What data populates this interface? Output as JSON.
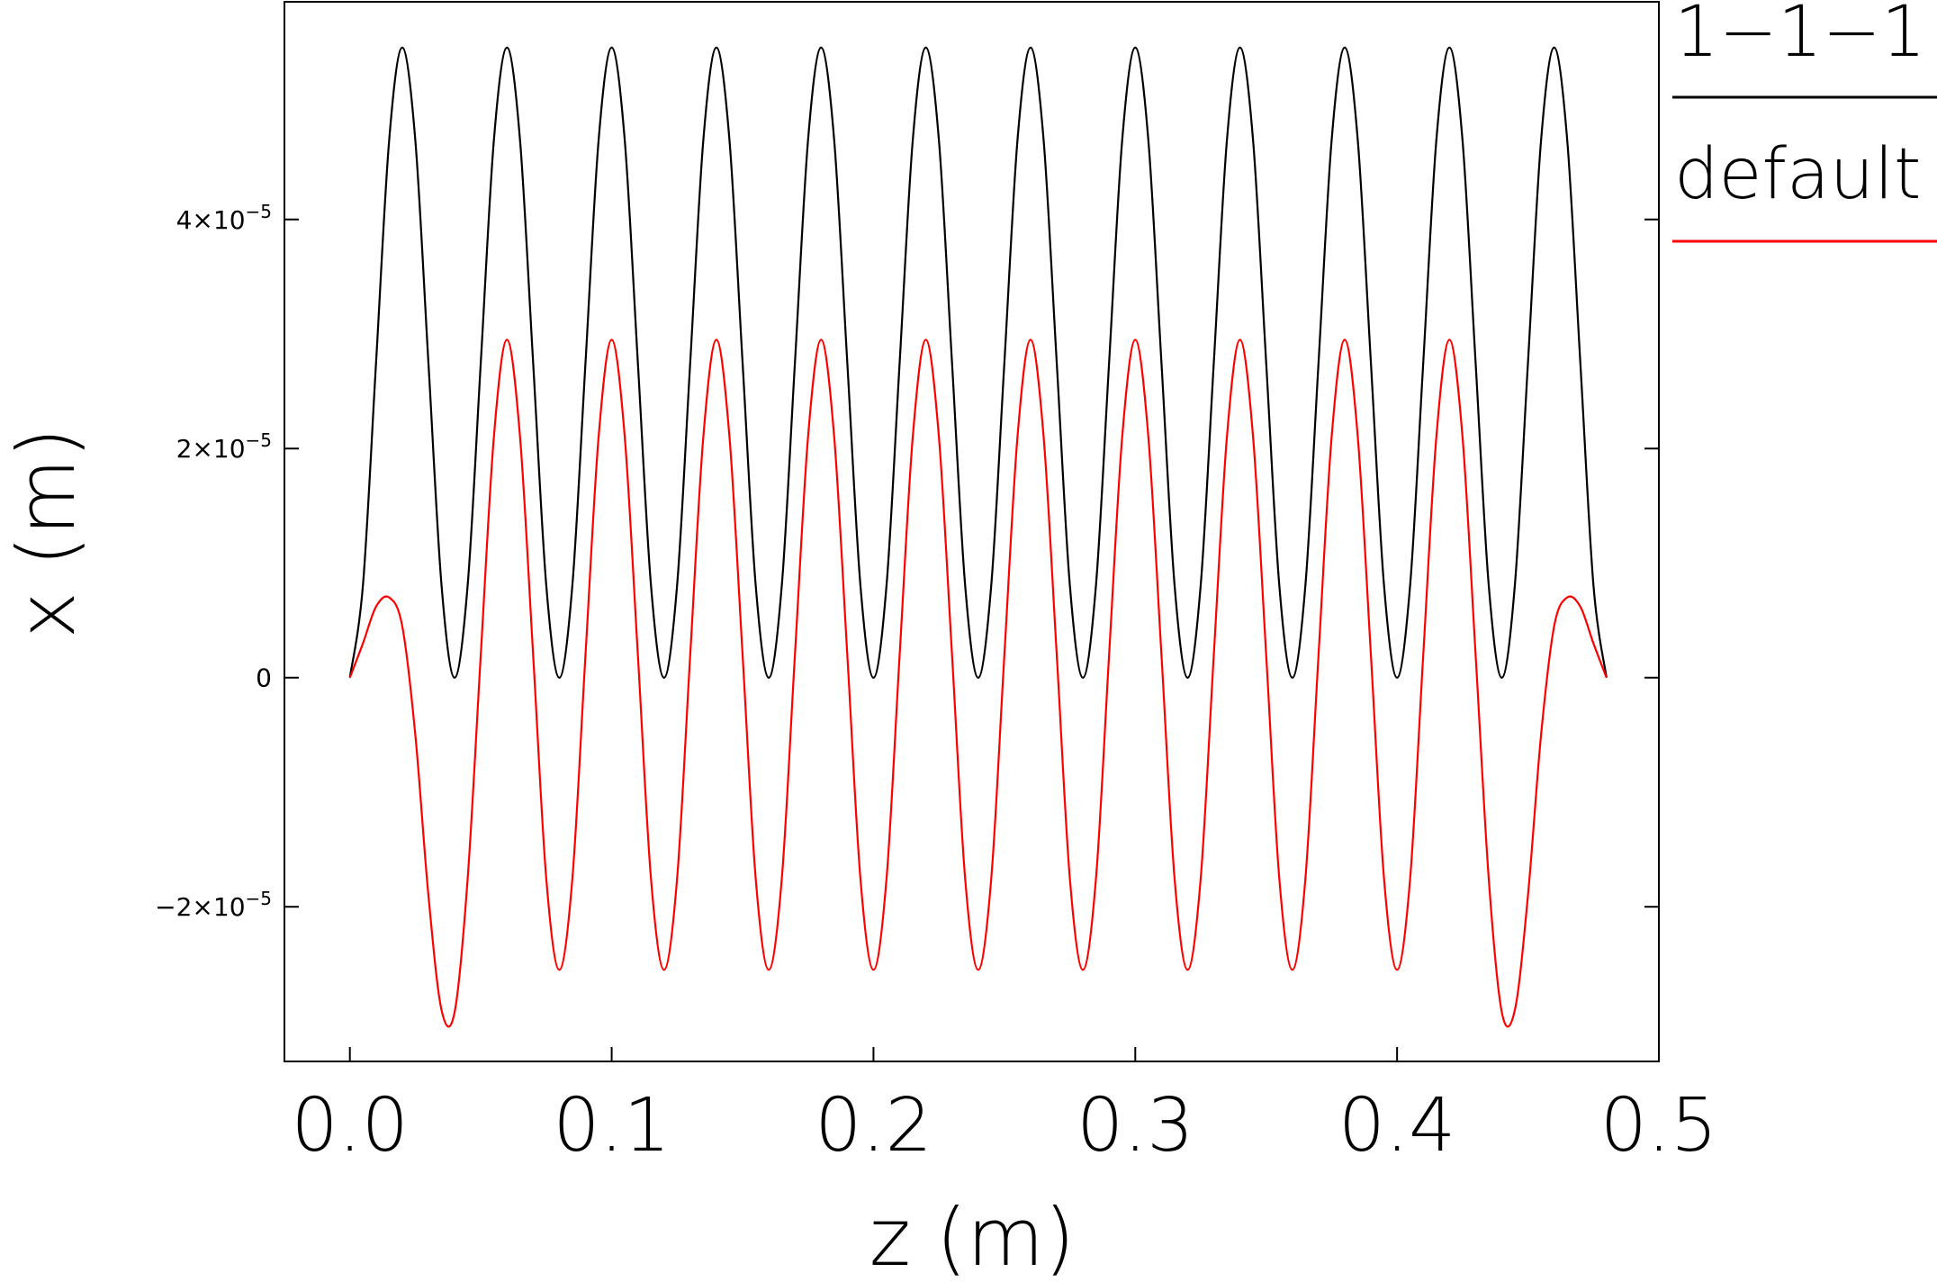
{
  "chart_data": {
    "type": "line",
    "xlabel": "z  (m)",
    "ylabel": "x  (m)",
    "xlim": [
      -0.025,
      0.5
    ],
    "ylim": [
      -3.35e-05,
      5.9e-05
    ],
    "xticks": [
      0.0,
      0.1,
      0.2,
      0.3,
      0.4,
      0.5
    ],
    "xtick_labels": [
      "0.0",
      "0.1",
      "0.2",
      "0.3",
      "0.4",
      "0.5"
    ],
    "yticks": [
      -2e-05,
      0,
      2e-05,
      4e-05
    ],
    "ytick_labels": [
      {
        "mantissa": "−2",
        "exp": "−5"
      },
      {
        "mantissa": "0",
        "exp": ""
      },
      {
        "mantissa": "2",
        "exp": "−5"
      },
      {
        "mantissa": "4",
        "exp": "−5"
      }
    ],
    "grid": false,
    "legend_position": "right-outside",
    "series": [
      {
        "name": "1−1−1",
        "color": "#000000",
        "description": "x oscillation, peaks ~5.5e-5 at z = 0.02 + 0.04k, zeros at z = 0.04k",
        "x": [
          0.0,
          0.005,
          0.01,
          0.015,
          0.02,
          0.025,
          0.03,
          0.035,
          0.04,
          0.045,
          0.05,
          0.055,
          0.06,
          0.065,
          0.07,
          0.075,
          0.08,
          0.085,
          0.09,
          0.095,
          0.1,
          0.105,
          0.11,
          0.115,
          0.12,
          0.125,
          0.13,
          0.135,
          0.14,
          0.145,
          0.15,
          0.155,
          0.16,
          0.165,
          0.17,
          0.175,
          0.18,
          0.185,
          0.19,
          0.195,
          0.2,
          0.205,
          0.21,
          0.215,
          0.22,
          0.225,
          0.23,
          0.235,
          0.24,
          0.245,
          0.25,
          0.255,
          0.26,
          0.265,
          0.27,
          0.275,
          0.28,
          0.285,
          0.29,
          0.295,
          0.3,
          0.305,
          0.31,
          0.315,
          0.32,
          0.325,
          0.33,
          0.335,
          0.34,
          0.345,
          0.35,
          0.355,
          0.36,
          0.365,
          0.37,
          0.375,
          0.38,
          0.385,
          0.39,
          0.395,
          0.4,
          0.405,
          0.41,
          0.415,
          0.42,
          0.425,
          0.43,
          0.435,
          0.44,
          0.445,
          0.45,
          0.455,
          0.46,
          0.465,
          0.47,
          0.475,
          0.48
        ],
        "y": [
          0.0,
          8.1e-06,
          2.75e-05,
          4.69e-05,
          5.5e-05,
          4.69e-05,
          2.75e-05,
          8.1e-06,
          0.0,
          8.1e-06,
          2.75e-05,
          4.69e-05,
          5.5e-05,
          4.69e-05,
          2.75e-05,
          8.1e-06,
          0.0,
          8.1e-06,
          2.75e-05,
          4.69e-05,
          5.5e-05,
          4.69e-05,
          2.75e-05,
          8.1e-06,
          0.0,
          8.1e-06,
          2.75e-05,
          4.69e-05,
          5.5e-05,
          4.69e-05,
          2.75e-05,
          8.1e-06,
          0.0,
          8.1e-06,
          2.75e-05,
          4.69e-05,
          5.5e-05,
          4.69e-05,
          2.75e-05,
          8.1e-06,
          0.0,
          8.1e-06,
          2.75e-05,
          4.69e-05,
          5.5e-05,
          4.69e-05,
          2.75e-05,
          8.1e-06,
          0.0,
          8.1e-06,
          2.75e-05,
          4.69e-05,
          5.5e-05,
          4.69e-05,
          2.75e-05,
          8.1e-06,
          0.0,
          8.1e-06,
          2.75e-05,
          4.69e-05,
          5.5e-05,
          4.69e-05,
          2.75e-05,
          8.1e-06,
          0.0,
          8.1e-06,
          2.75e-05,
          4.69e-05,
          5.5e-05,
          4.69e-05,
          2.75e-05,
          8.1e-06,
          0.0,
          8.1e-06,
          2.75e-05,
          4.69e-05,
          5.5e-05,
          4.69e-05,
          2.75e-05,
          8.1e-06,
          0.0,
          8.1e-06,
          2.75e-05,
          4.69e-05,
          5.5e-05,
          4.69e-05,
          2.75e-05,
          8.1e-06,
          0.0,
          8.1e-06,
          2.75e-05,
          4.69e-05,
          5.5e-05,
          4.69e-05,
          2.75e-05,
          8.1e-06,
          0.0
        ]
      },
      {
        "name": "default",
        "color": "#ff0000",
        "description": "x oscillation around 0; end lobes ~0.7e-5 and minima ~-2.9e-5, interior peaks ~2.95e-5 at z = 0.06 + 0.04k, interior minima ~-2.55e-5",
        "x": [
          0.0,
          0.005,
          0.01,
          0.015,
          0.02,
          0.025,
          0.03,
          0.035,
          0.04,
          0.045,
          0.05,
          0.055,
          0.06,
          0.065,
          0.07,
          0.075,
          0.08,
          0.085,
          0.09,
          0.095,
          0.1,
          0.105,
          0.11,
          0.115,
          0.12,
          0.125,
          0.13,
          0.135,
          0.14,
          0.145,
          0.15,
          0.155,
          0.16,
          0.165,
          0.17,
          0.175,
          0.18,
          0.185,
          0.19,
          0.195,
          0.2,
          0.205,
          0.21,
          0.215,
          0.22,
          0.225,
          0.23,
          0.235,
          0.24,
          0.245,
          0.25,
          0.255,
          0.26,
          0.265,
          0.27,
          0.275,
          0.28,
          0.285,
          0.29,
          0.295,
          0.3,
          0.305,
          0.31,
          0.315,
          0.32,
          0.325,
          0.33,
          0.335,
          0.34,
          0.345,
          0.35,
          0.355,
          0.36,
          0.365,
          0.37,
          0.375,
          0.38,
          0.385,
          0.39,
          0.395,
          0.4,
          0.405,
          0.41,
          0.415,
          0.42,
          0.425,
          0.43,
          0.435,
          0.44,
          0.445,
          0.45,
          0.455,
          0.46,
          0.465,
          0.47,
          0.475,
          0.48
        ],
        "y": [
          0.0,
          3e-06,
          6.2e-06,
          7e-06,
          4.5e-06,
          -5e-06,
          -1.9e-05,
          -2.9e-05,
          -2.92e-05,
          -1.75e-05,
          2e-06,
          2.1e-05,
          2.95e-05,
          2.1e-05,
          2e-06,
          -1.75e-05,
          -2.55e-05,
          -1.75e-05,
          2e-06,
          2.1e-05,
          2.95e-05,
          2.1e-05,
          2e-06,
          -1.75e-05,
          -2.55e-05,
          -1.75e-05,
          2e-06,
          2.1e-05,
          2.95e-05,
          2.1e-05,
          2e-06,
          -1.75e-05,
          -2.55e-05,
          -1.75e-05,
          2e-06,
          2.1e-05,
          2.95e-05,
          2.1e-05,
          2e-06,
          -1.75e-05,
          -2.55e-05,
          -1.75e-05,
          2e-06,
          2.1e-05,
          2.95e-05,
          2.1e-05,
          2e-06,
          -1.75e-05,
          -2.55e-05,
          -1.75e-05,
          2e-06,
          2.1e-05,
          2.95e-05,
          2.1e-05,
          2e-06,
          -1.75e-05,
          -2.55e-05,
          -1.75e-05,
          2e-06,
          2.1e-05,
          2.95e-05,
          2.1e-05,
          2e-06,
          -1.75e-05,
          -2.55e-05,
          -1.75e-05,
          2e-06,
          2.1e-05,
          2.95e-05,
          2.1e-05,
          2e-06,
          -1.75e-05,
          -2.55e-05,
          -1.75e-05,
          2e-06,
          2.1e-05,
          2.95e-05,
          2.1e-05,
          2e-06,
          -1.75e-05,
          -2.55e-05,
          -1.75e-05,
          2e-06,
          2.1e-05,
          2.95e-05,
          2.1e-05,
          2e-06,
          -1.75e-05,
          -2.92e-05,
          -2.9e-05,
          -1.9e-05,
          -5e-06,
          4.5e-06,
          7e-06,
          6.2e-06,
          3e-06,
          0.0
        ]
      }
    ]
  }
}
